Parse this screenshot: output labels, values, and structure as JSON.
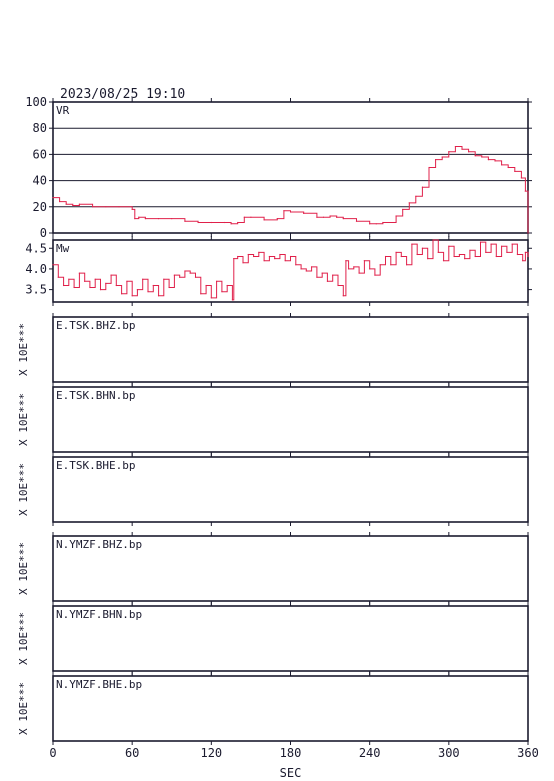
{
  "header": {
    "datetime": "2023/08/25 19:10"
  },
  "colors": {
    "trace": "#e0204a",
    "frame": "#1a1a2e"
  },
  "chart_data": [
    {
      "type": "line",
      "label": "VR",
      "ylim": [
        0,
        100
      ],
      "yticks": [
        "0",
        "20",
        "40",
        "60",
        "80",
        "100"
      ],
      "grid": true,
      "xlim": [
        0,
        360
      ],
      "x": [
        0,
        5,
        10,
        15,
        20,
        30,
        40,
        50,
        60,
        62,
        65,
        70,
        80,
        90,
        100,
        110,
        120,
        130,
        135,
        140,
        145,
        150,
        160,
        170,
        175,
        180,
        190,
        200,
        205,
        210,
        215,
        220,
        230,
        240,
        245,
        250,
        260,
        265,
        270,
        275,
        280,
        285,
        290,
        295,
        300,
        305,
        310,
        315,
        320,
        325,
        330,
        335,
        340,
        345,
        350,
        355,
        358,
        360
      ],
      "y": [
        27,
        24,
        22,
        21,
        22,
        20,
        20,
        20,
        18,
        11,
        12,
        11,
        11,
        11,
        9,
        8,
        8,
        8,
        7,
        8,
        12,
        12,
        10,
        11,
        17,
        16,
        15,
        12,
        12,
        13,
        12,
        11,
        9,
        7,
        7,
        8,
        13,
        18,
        23,
        28,
        35,
        50,
        56,
        58,
        62,
        66,
        64,
        62,
        59,
        58,
        56,
        55,
        52,
        50,
        47,
        42,
        32,
        0
      ]
    },
    {
      "type": "line",
      "label": "Mw",
      "ylim": [
        3.2,
        4.7
      ],
      "yticks": [
        "3.5",
        "4.0",
        "4.5"
      ],
      "grid": false,
      "xlim": [
        0,
        360
      ],
      "x": [
        0,
        4,
        8,
        12,
        16,
        20,
        24,
        28,
        32,
        36,
        40,
        44,
        48,
        52,
        56,
        60,
        64,
        68,
        72,
        76,
        80,
        84,
        88,
        92,
        96,
        100,
        104,
        108,
        112,
        116,
        120,
        124,
        128,
        132,
        136,
        137,
        140,
        144,
        148,
        152,
        156,
        160,
        164,
        168,
        172,
        176,
        180,
        184,
        188,
        192,
        196,
        200,
        204,
        208,
        212,
        216,
        220,
        222,
        224,
        228,
        232,
        236,
        240,
        244,
        248,
        252,
        256,
        260,
        264,
        268,
        272,
        276,
        280,
        284,
        288,
        292,
        296,
        300,
        304,
        308,
        312,
        316,
        320,
        324,
        328,
        332,
        336,
        340,
        344,
        348,
        352,
        356,
        358,
        360
      ],
      "y": [
        4.1,
        3.8,
        3.6,
        3.75,
        3.55,
        3.9,
        3.7,
        3.55,
        3.75,
        3.5,
        3.65,
        3.85,
        3.6,
        3.4,
        3.7,
        3.35,
        3.5,
        3.75,
        3.45,
        3.6,
        3.35,
        3.75,
        3.55,
        3.85,
        3.8,
        3.95,
        3.9,
        3.8,
        3.4,
        3.6,
        3.3,
        3.7,
        3.45,
        3.6,
        3.25,
        4.25,
        4.3,
        4.15,
        4.35,
        4.3,
        4.4,
        4.2,
        4.3,
        4.25,
        4.35,
        4.2,
        4.3,
        4.1,
        4.0,
        3.95,
        4.05,
        3.8,
        3.9,
        3.7,
        3.85,
        3.6,
        3.35,
        4.2,
        4.0,
        4.05,
        3.9,
        4.2,
        4.0,
        3.85,
        4.1,
        4.3,
        4.1,
        4.4,
        4.3,
        4.1,
        4.6,
        4.35,
        4.5,
        4.25,
        4.75,
        4.4,
        4.2,
        4.55,
        4.3,
        4.35,
        4.25,
        4.45,
        4.3,
        4.65,
        4.4,
        4.6,
        4.3,
        4.55,
        4.4,
        4.6,
        4.35,
        4.2,
        4.4,
        4.3
      ]
    },
    {
      "type": "line",
      "label": "E.TSK.BHZ.bp",
      "exponent_label": "X 10E***",
      "series": []
    },
    {
      "type": "line",
      "label": "E.TSK.BHN.bp",
      "exponent_label": "X 10E***",
      "series": []
    },
    {
      "type": "line",
      "label": "E.TSK.BHE.bp",
      "exponent_label": "X 10E***",
      "series": []
    },
    {
      "type": "line",
      "label": "N.YMZF.BHZ.bp",
      "exponent_label": "X 10E***",
      "series": []
    },
    {
      "type": "line",
      "label": "N.YMZF.BHN.bp",
      "exponent_label": "X 10E***",
      "series": []
    },
    {
      "type": "line",
      "label": "N.YMZF.BHE.bp",
      "exponent_label": "X 10E***",
      "series": []
    }
  ],
  "x_axis": {
    "xlabel": "SEC",
    "ticks": [
      "0",
      "60",
      "120",
      "180",
      "240",
      "300",
      "360"
    ],
    "xlim": [
      0,
      360
    ]
  }
}
